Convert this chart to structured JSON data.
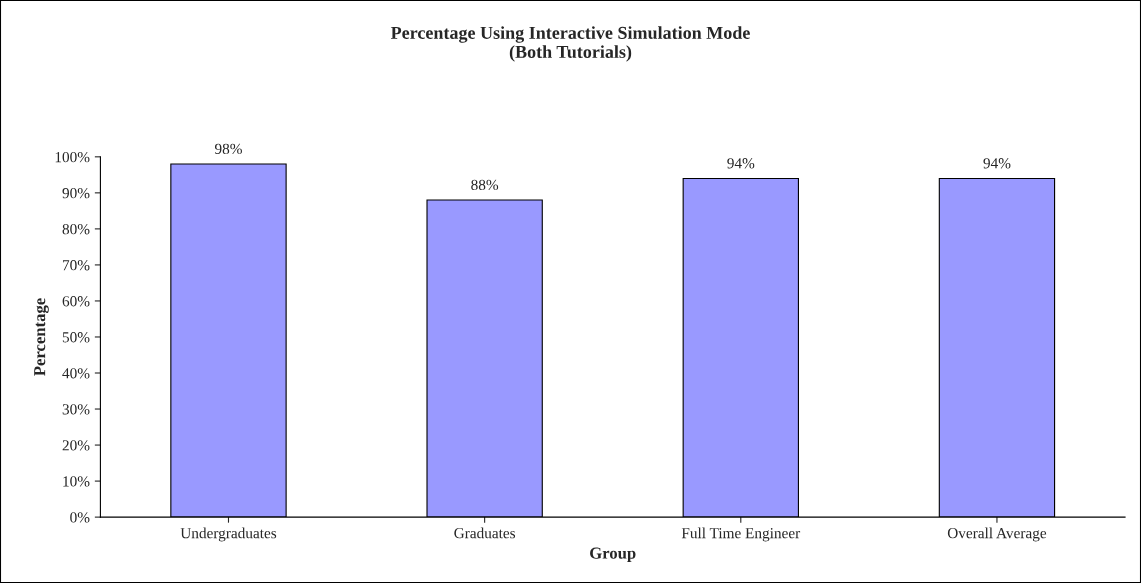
{
  "chart_data": {
    "type": "bar",
    "title": "Percentage Using Interactive Simulation Mode\n(Both Tutorials)",
    "xlabel": "Group",
    "ylabel": "Percentage",
    "categories": [
      "Undergraduates",
      "Graduates",
      "Full Time Engineer",
      "Overall Average"
    ],
    "values": [
      98,
      88,
      94,
      94
    ],
    "color": "#9999ff",
    "value_labels": [
      "98%",
      "88%",
      "94%",
      "94%"
    ],
    "ylim": [
      0,
      100
    ],
    "yticks": [
      {
        "value": 0,
        "label": "0%"
      },
      {
        "value": 10,
        "label": "10%"
      },
      {
        "value": 20,
        "label": "20%"
      },
      {
        "value": 30,
        "label": "30%"
      },
      {
        "value": 40,
        "label": "40%"
      },
      {
        "value": 50,
        "label": "50%"
      },
      {
        "value": 60,
        "label": "60%"
      },
      {
        "value": 70,
        "label": "70%"
      },
      {
        "value": 80,
        "label": "80%"
      },
      {
        "value": 90,
        "label": "90%"
      },
      {
        "value": 100,
        "label": "100%"
      }
    ],
    "grid": false,
    "legend": false
  }
}
